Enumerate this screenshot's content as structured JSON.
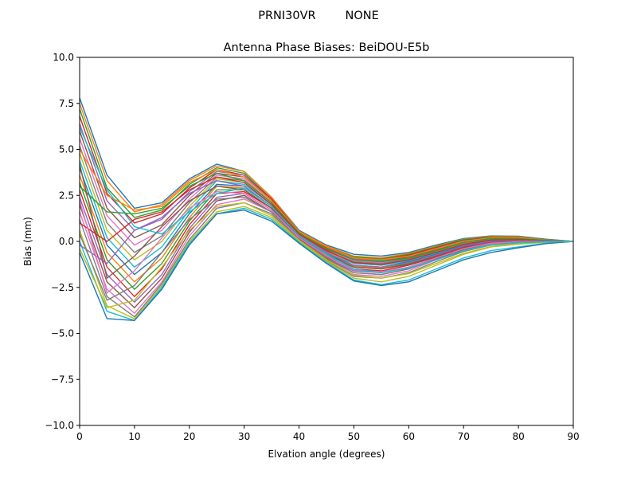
{
  "suptitle": "PRNI30VR        NONE",
  "chart_data": {
    "type": "line",
    "title": "Antenna Phase Biases: BeiDOU-E5b",
    "xlabel": "Elvation angle (degrees)",
    "ylabel": "Bias (mm)",
    "xlim": [
      0,
      90
    ],
    "ylim": [
      -10,
      10
    ],
    "xticks": [
      0,
      10,
      20,
      30,
      40,
      50,
      60,
      70,
      80,
      90
    ],
    "yticks": [
      -10.0,
      -7.5,
      -5.0,
      -2.5,
      0.0,
      2.5,
      5.0,
      7.5,
      10.0
    ],
    "ytick_labels": [
      "−10.0",
      "−7.5",
      "−5.0",
      "−2.5",
      "0.0",
      "2.5",
      "5.0",
      "7.5",
      "10.0"
    ],
    "xtick_labels": [
      "0",
      "10",
      "20",
      "30",
      "40",
      "50",
      "60",
      "70",
      "80",
      "90"
    ],
    "grid": false,
    "x": [
      0,
      5,
      10,
      15,
      20,
      25,
      30,
      35,
      40,
      45,
      50,
      55,
      60,
      65,
      70,
      75,
      80,
      85,
      90
    ],
    "series": [
      {
        "values": [
          7.8,
          3.6,
          1.8,
          2.1,
          3.4,
          4.2,
          3.8,
          2.4,
          0.6,
          -0.2,
          -0.7,
          -0.8,
          -0.6,
          -0.2,
          0.15,
          0.3,
          0.28,
          0.12,
          0.0
        ]
      },
      {
        "values": [
          7.5,
          3.3,
          1.6,
          2.0,
          3.3,
          4.1,
          3.8,
          2.4,
          0.55,
          -0.25,
          -0.8,
          -0.9,
          -0.65,
          -0.25,
          0.12,
          0.28,
          0.25,
          0.1,
          0.0
        ]
      },
      {
        "values": [
          7.2,
          2.9,
          1.3,
          1.7,
          3.1,
          4.0,
          3.7,
          2.3,
          0.5,
          -0.3,
          -0.85,
          -0.95,
          -0.7,
          -0.3,
          0.1,
          0.25,
          0.22,
          0.1,
          0.0
        ]
      },
      {
        "values": [
          6.8,
          2.6,
          1.0,
          1.5,
          2.9,
          3.9,
          3.6,
          2.3,
          0.5,
          -0.35,
          -0.9,
          -1.0,
          -0.75,
          -0.35,
          0.05,
          0.22,
          0.2,
          0.08,
          0.0
        ]
      },
      {
        "values": [
          6.4,
          2.2,
          0.6,
          1.2,
          2.7,
          3.8,
          3.6,
          2.2,
          0.45,
          -0.4,
          -0.95,
          -1.05,
          -0.8,
          -0.4,
          0.02,
          0.2,
          0.18,
          0.08,
          0.0
        ]
      },
      {
        "values": [
          6.0,
          1.8,
          0.2,
          0.9,
          2.5,
          3.7,
          3.5,
          2.2,
          0.4,
          -0.45,
          -1.0,
          -1.1,
          -0.85,
          -0.45,
          -0.02,
          0.17,
          0.16,
          0.07,
          0.0
        ]
      },
      {
        "values": [
          5.6,
          1.4,
          -0.2,
          0.6,
          2.3,
          3.6,
          3.4,
          2.1,
          0.4,
          -0.5,
          -1.05,
          -1.15,
          -0.9,
          -0.5,
          -0.06,
          0.14,
          0.14,
          0.06,
          0.0
        ]
      },
      {
        "values": [
          5.2,
          1.0,
          -0.6,
          0.3,
          2.1,
          3.5,
          3.3,
          2.1,
          0.35,
          -0.55,
          -1.1,
          -1.2,
          -0.95,
          -0.55,
          -0.1,
          0.11,
          0.12,
          0.05,
          0.0
        ]
      },
      {
        "values": [
          4.8,
          0.6,
          -1.0,
          0.0,
          1.9,
          3.4,
          3.2,
          2.0,
          0.3,
          -0.6,
          -1.15,
          -1.25,
          -1.0,
          -0.6,
          -0.14,
          0.08,
          0.1,
          0.05,
          0.0
        ]
      },
      {
        "values": [
          4.4,
          0.2,
          -1.4,
          -0.3,
          1.7,
          3.3,
          3.1,
          2.0,
          0.3,
          -0.65,
          -1.2,
          -1.3,
          -1.05,
          -0.65,
          -0.18,
          0.05,
          0.08,
          0.04,
          0.0
        ]
      },
      {
        "values": [
          4.0,
          -0.2,
          -1.8,
          -0.6,
          1.5,
          3.1,
          3.0,
          1.9,
          0.25,
          -0.7,
          -1.3,
          -1.4,
          -1.1,
          -0.7,
          -0.22,
          0.02,
          0.06,
          0.03,
          0.0
        ]
      },
      {
        "values": [
          3.6,
          -0.6,
          -2.2,
          -0.9,
          1.3,
          3.0,
          2.9,
          1.9,
          0.2,
          -0.75,
          -1.35,
          -1.45,
          -1.15,
          -0.75,
          -0.26,
          -0.02,
          0.04,
          0.03,
          0.0
        ]
      },
      {
        "values": [
          3.2,
          -1.0,
          -2.6,
          -1.2,
          1.1,
          2.8,
          2.8,
          1.8,
          0.2,
          -0.8,
          -1.4,
          -1.5,
          -1.2,
          -0.8,
          -0.3,
          -0.05,
          0.02,
          0.02,
          0.0
        ]
      },
      {
        "values": [
          2.8,
          -1.4,
          -3.0,
          -1.5,
          0.9,
          2.6,
          2.7,
          1.8,
          0.15,
          -0.85,
          -1.5,
          -1.6,
          -1.3,
          -0.85,
          -0.35,
          -0.08,
          0.0,
          0.02,
          0.0
        ]
      },
      {
        "values": [
          2.4,
          -1.8,
          -3.3,
          -1.8,
          0.7,
          2.4,
          2.6,
          1.7,
          0.1,
          -0.9,
          -1.6,
          -1.7,
          -1.4,
          -0.9,
          -0.4,
          -0.1,
          -0.02,
          0.01,
          0.0
        ]
      },
      {
        "values": [
          2.0,
          -2.2,
          -3.6,
          -2.0,
          0.5,
          2.2,
          2.5,
          1.6,
          0.1,
          -0.95,
          -1.7,
          -1.8,
          -1.5,
          -0.95,
          -0.45,
          -0.13,
          -0.04,
          0.0,
          0.0
        ]
      },
      {
        "values": [
          1.6,
          -2.6,
          -3.9,
          -2.2,
          0.3,
          2.0,
          2.3,
          1.6,
          0.05,
          -1.0,
          -1.8,
          -1.9,
          -1.6,
          -1.0,
          -0.5,
          -0.16,
          -0.06,
          0.0,
          0.0
        ]
      },
      {
        "values": [
          1.2,
          -3.0,
          -4.1,
          -2.3,
          0.1,
          1.8,
          2.1,
          1.5,
          0.0,
          -1.05,
          -1.9,
          -2.0,
          -1.7,
          -1.1,
          -0.55,
          -0.2,
          -0.08,
          -0.01,
          0.0
        ]
      },
      {
        "values": [
          0.6,
          -3.5,
          -4.2,
          -2.4,
          0.0,
          1.6,
          1.9,
          1.3,
          0.0,
          -1.1,
          -2.0,
          -2.2,
          -1.9,
          -1.3,
          -0.7,
          -0.3,
          -0.15,
          -0.05,
          0.0
        ]
      },
      {
        "values": [
          0.0,
          -3.8,
          -4.3,
          -2.5,
          -0.1,
          1.5,
          1.8,
          1.2,
          -0.05,
          -1.15,
          -2.1,
          -2.35,
          -2.1,
          -1.5,
          -0.9,
          -0.5,
          -0.3,
          -0.1,
          0.0
        ]
      },
      {
        "values": [
          -0.6,
          -4.2,
          -4.3,
          -2.6,
          -0.2,
          1.5,
          1.7,
          1.1,
          -0.1,
          -1.2,
          -2.15,
          -2.4,
          -2.2,
          -1.6,
          -1.0,
          -0.6,
          -0.35,
          -0.12,
          0.0
        ]
      },
      {
        "values": [
          5.0,
          2.5,
          1.7,
          1.9,
          3.2,
          3.9,
          3.5,
          2.2,
          0.5,
          -0.3,
          -0.9,
          -1.0,
          -0.8,
          -0.4,
          0.0,
          0.2,
          0.2,
          0.08,
          0.0
        ]
      },
      {
        "values": [
          3.0,
          1.6,
          1.5,
          1.8,
          3.0,
          3.7,
          3.3,
          2.1,
          0.45,
          -0.4,
          -1.0,
          -1.1,
          -0.9,
          -0.5,
          -0.05,
          0.15,
          0.15,
          0.06,
          0.0
        ]
      },
      {
        "values": [
          1.0,
          0.0,
          1.2,
          1.6,
          2.8,
          3.5,
          3.2,
          2.0,
          0.4,
          -0.5,
          -1.15,
          -1.25,
          -1.0,
          -0.6,
          -0.15,
          0.08,
          0.1,
          0.04,
          0.0
        ]
      },
      {
        "values": [
          -0.2,
          -1.2,
          0.6,
          1.3,
          2.6,
          3.3,
          3.0,
          1.9,
          0.3,
          -0.6,
          -1.3,
          -1.4,
          -1.15,
          -0.75,
          -0.25,
          0.0,
          0.05,
          0.02,
          0.0
        ]
      },
      {
        "values": [
          4.2,
          -2.0,
          -0.8,
          0.8,
          2.2,
          3.0,
          2.8,
          1.8,
          0.25,
          -0.7,
          -1.4,
          -1.5,
          -1.25,
          -0.8,
          -0.3,
          -0.05,
          0.02,
          0.01,
          0.0
        ]
      },
      {
        "values": [
          2.2,
          -2.8,
          -1.6,
          0.2,
          1.8,
          2.7,
          2.6,
          1.7,
          0.2,
          -0.8,
          -1.55,
          -1.65,
          -1.4,
          -0.9,
          -0.4,
          -0.1,
          -0.02,
          0.0,
          0.0
        ]
      },
      {
        "values": [
          0.4,
          -3.2,
          -2.4,
          -0.6,
          1.2,
          2.3,
          2.4,
          1.6,
          0.1,
          -0.9,
          -1.7,
          -1.8,
          -1.5,
          -1.0,
          -0.5,
          -0.18,
          -0.06,
          -0.01,
          0.0
        ]
      },
      {
        "values": [
          -0.4,
          -3.6,
          -3.2,
          -1.4,
          0.6,
          1.9,
          2.1,
          1.4,
          0.05,
          -1.0,
          -1.85,
          -2.0,
          -1.75,
          -1.2,
          -0.65,
          -0.28,
          -0.12,
          -0.03,
          0.0
        ]
      },
      {
        "values": [
          6.2,
          2.8,
          0.8,
          0.4,
          1.6,
          2.6,
          2.9,
          1.9,
          0.3,
          -0.7,
          -1.5,
          -1.7,
          -1.45,
          -1.0,
          -0.5,
          -0.2,
          -0.08,
          -0.02,
          0.0
        ]
      }
    ]
  },
  "colors": [
    "#1f77b4",
    "#ff7f0e",
    "#2ca02c",
    "#d62728",
    "#9467bd",
    "#8c564b",
    "#e377c2",
    "#7f7f7f",
    "#bcbd22",
    "#17becf"
  ]
}
